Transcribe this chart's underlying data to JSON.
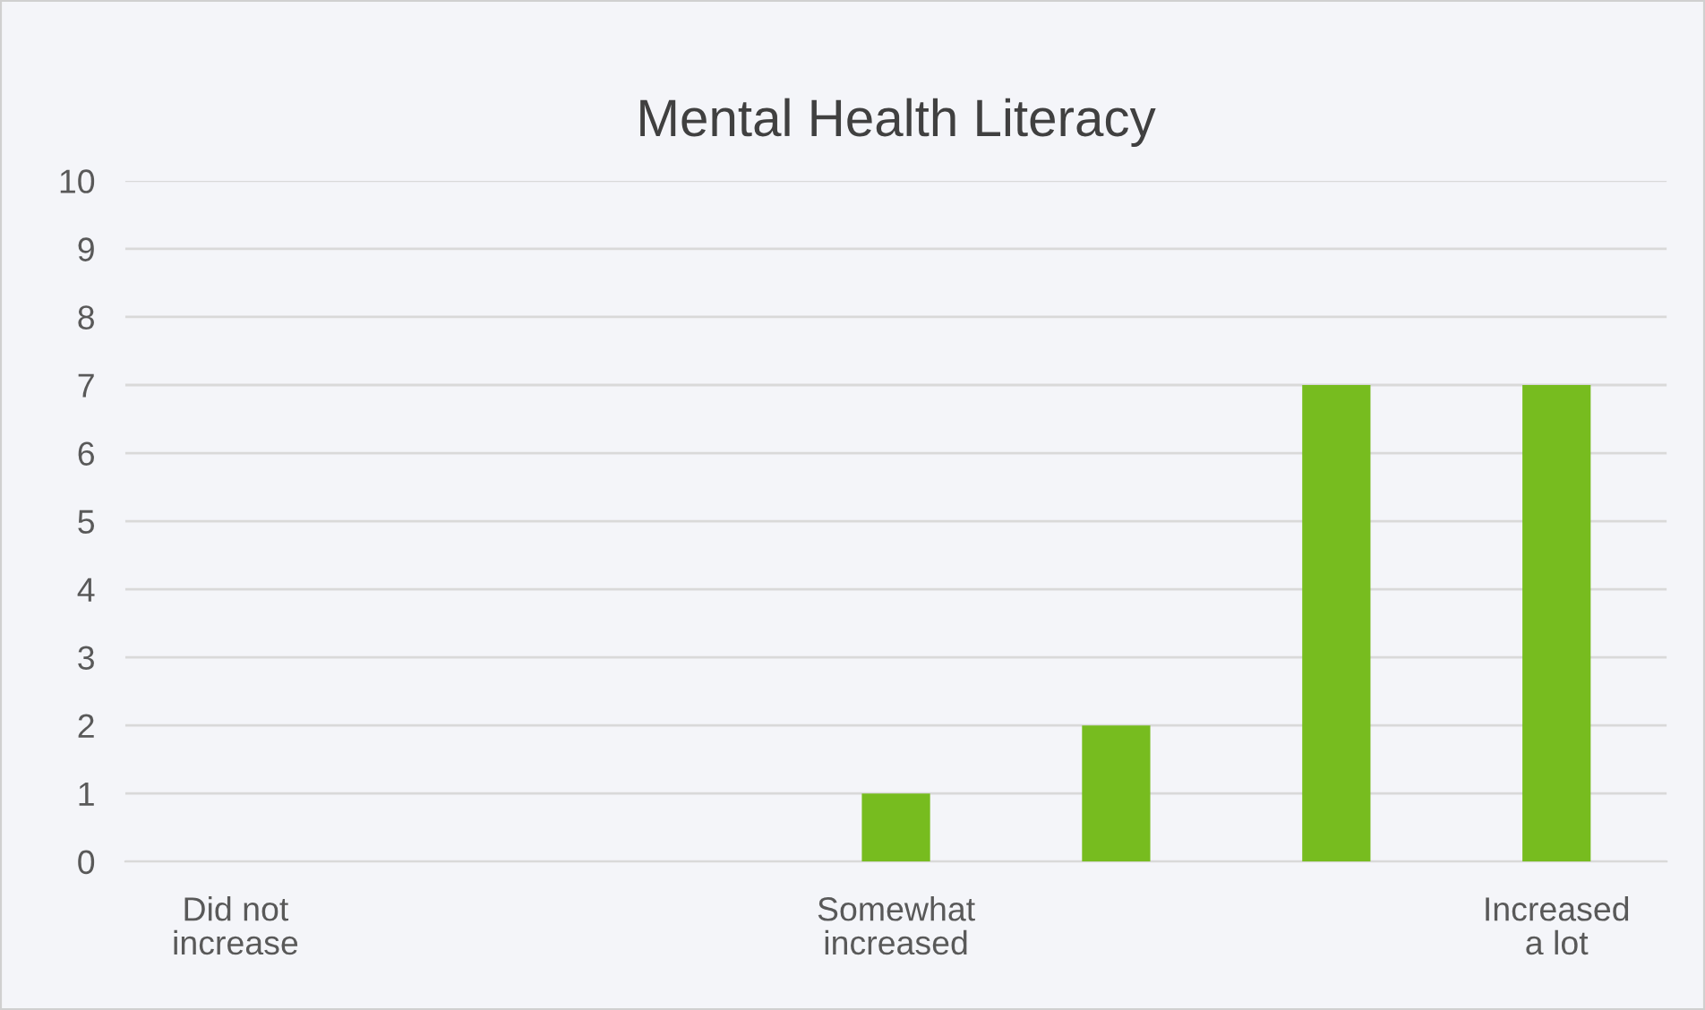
{
  "chart_data": {
    "type": "bar",
    "title": "Mental Health Literacy",
    "categories": [
      "Did not\nincrease",
      null,
      null,
      "Somewhat\nincreased",
      null,
      null,
      "Increased\na lot"
    ],
    "values": [
      0,
      0,
      0,
      1,
      2,
      7,
      7
    ],
    "color": "#77bc1f",
    "ylim": [
      0,
      10
    ],
    "yticks": [
      0,
      1,
      2,
      3,
      4,
      5,
      6,
      7,
      8,
      9,
      10
    ],
    "grid": "y",
    "legend": false
  }
}
